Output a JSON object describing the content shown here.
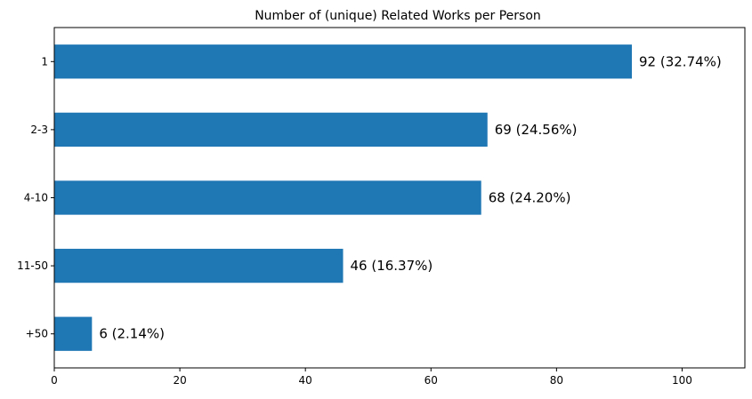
{
  "chart_data": {
    "type": "bar",
    "orientation": "horizontal",
    "title": "Number of (unique) Related Works per Person",
    "categories": [
      "1",
      "2-3",
      "4-10",
      "11-50",
      "+50"
    ],
    "values": [
      92,
      69,
      68,
      46,
      6
    ],
    "data_labels": [
      "92 (32.74%)",
      "69 (24.56%)",
      "68 (24.20%)",
      "46 (16.37%)",
      "6 (2.14%)"
    ],
    "xlim": [
      0,
      110
    ],
    "xticks": [
      0,
      20,
      40,
      60,
      80,
      100
    ],
    "xlabel": "",
    "ylabel": "",
    "grid": false,
    "bar_color": "#1f77b4"
  }
}
